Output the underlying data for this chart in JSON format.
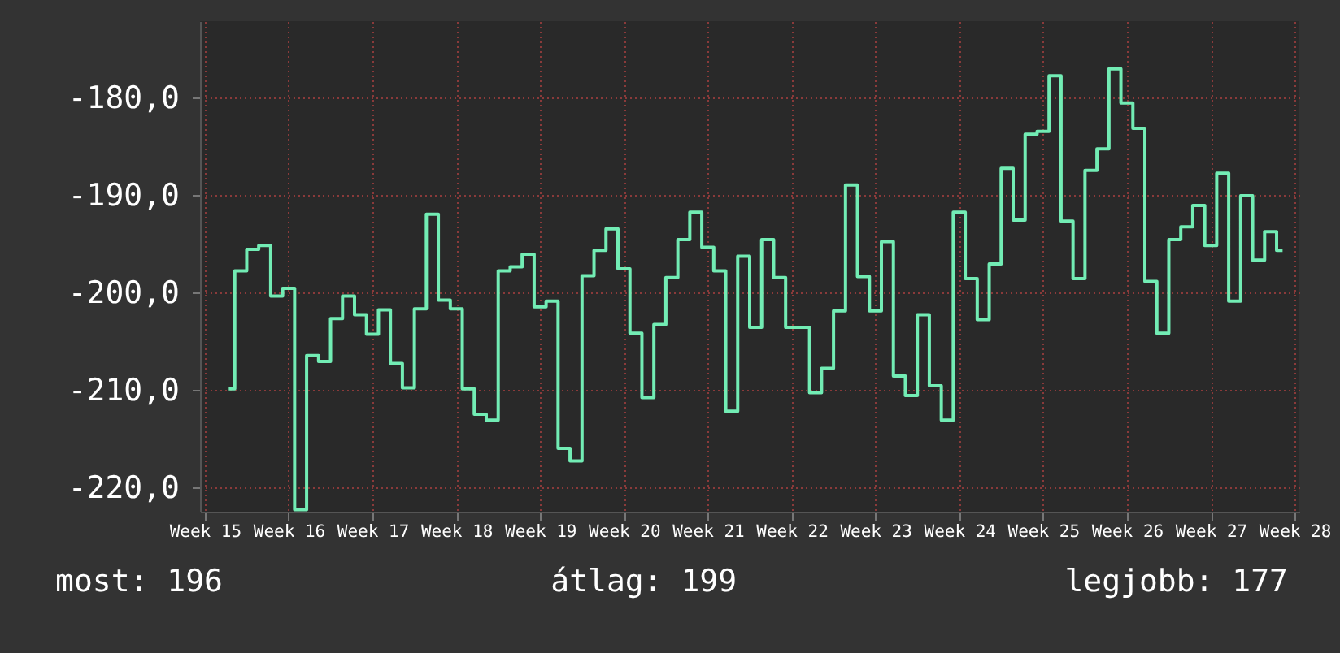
{
  "chart_data": {
    "type": "step",
    "categories": [
      "Week 15",
      null,
      null,
      null,
      null,
      null,
      null,
      "Week 16",
      null,
      null,
      null,
      null,
      null,
      null,
      "Week 17",
      null,
      null,
      null,
      null,
      null,
      null,
      "Week 18",
      null,
      null,
      null,
      null,
      null,
      null,
      "Week 19",
      null,
      null,
      null,
      null,
      null,
      null,
      "Week 20",
      null,
      null,
      null,
      null,
      null,
      null,
      "Week 21",
      null,
      null,
      null,
      null,
      null,
      null,
      "Week 22",
      null,
      null,
      null,
      null,
      null,
      null,
      "Week 23",
      null,
      null,
      null,
      null,
      null,
      null,
      "Week 24",
      null,
      null,
      null,
      null,
      null,
      null,
      "Week 25",
      null,
      null,
      null,
      null,
      null,
      null,
      "Week 26",
      null,
      null,
      null,
      null,
      null,
      null,
      "Week 27",
      null,
      null,
      null,
      null,
      null,
      null,
      "Week 28"
    ],
    "series": [
      {
        "color": "#72ecb4",
        "values": [
          null,
          null,
          -209.9,
          -197.8,
          -195.6,
          -195.2,
          -200.4,
          -199.6,
          -222.3,
          -206.5,
          -207.1,
          -202.7,
          -200.4,
          -202.3,
          -204.3,
          -201.8,
          -207.3,
          -209.8,
          -201.7,
          -192.0,
          -200.8,
          -201.7,
          -209.9,
          -212.5,
          -213.1,
          -197.8,
          -197.4,
          -196.1,
          -201.5,
          -200.9,
          -216.0,
          -217.3,
          -198.3,
          -195.7,
          -193.5,
          -197.6,
          -204.2,
          -210.8,
          -203.3,
          -198.5,
          -194.6,
          -191.8,
          -195.4,
          -197.8,
          -212.2,
          -196.3,
          -203.6,
          -194.6,
          -198.5,
          -203.6,
          -203.6,
          -210.3,
          -207.8,
          -201.9,
          -189.0,
          -198.4,
          -201.9,
          -194.8,
          -208.6,
          -210.6,
          -202.3,
          -209.6,
          -213.1,
          -191.8,
          -198.6,
          -202.8,
          -197.1,
          -187.3,
          -192.6,
          -183.8,
          -183.5,
          -177.8,
          -192.7,
          -198.6,
          -187.5,
          -185.3,
          -177.1,
          -180.6,
          -183.2,
          -198.9,
          -204.2,
          -194.6,
          -193.3,
          -191.1,
          -195.2,
          -187.8,
          -200.9,
          -190.1,
          -196.7,
          -193.8,
          -195.7,
          null
        ]
      }
    ],
    "ylim": [
      -222.5,
      -172.2
    ],
    "yticks": [
      {
        "value": -220,
        "label": "-220,0"
      },
      {
        "value": -210,
        "label": "-210,0"
      },
      {
        "value": -200,
        "label": "-200,0"
      },
      {
        "value": -190,
        "label": "-190,0"
      },
      {
        "value": -180,
        "label": "-180,0"
      }
    ],
    "grid": true,
    "annotations": [
      "most: 196",
      "átlag: 199",
      "legjobb: 177"
    ]
  }
}
